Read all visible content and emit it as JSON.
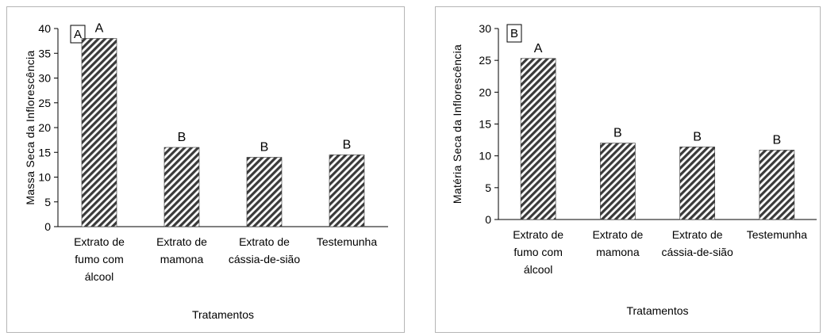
{
  "chart_data": [
    {
      "type": "bar",
      "panel_label": "A",
      "categories": [
        [
          "Extrato de",
          "fumo com",
          "álcool"
        ],
        [
          "Extrato de",
          "mamona"
        ],
        [
          "Extrato de",
          "cássia-de-sião"
        ],
        [
          "Testemunha"
        ]
      ],
      "values": [
        38,
        16,
        14,
        14.5
      ],
      "significance": [
        "A",
        "B",
        "B",
        "B"
      ],
      "xlabel": "Tratamentos",
      "ylabel": "Massa Seca da Inflorescência",
      "ylim": [
        0,
        40
      ],
      "yticks": [
        0,
        5,
        10,
        15,
        20,
        25,
        30,
        35,
        40
      ],
      "bar_pattern": "diagonal-hatch",
      "bar_color": "#3a3a3a",
      "grid": false
    },
    {
      "type": "bar",
      "panel_label": "B",
      "categories": [
        [
          "Extrato de",
          "fumo com",
          "álcool"
        ],
        [
          "Extrato de",
          "mamona"
        ],
        [
          "Extrato de",
          "cássia-de-sião"
        ],
        [
          "Testemunha"
        ]
      ],
      "values": [
        25.3,
        12,
        11.4,
        10.9
      ],
      "significance": [
        "A",
        "B",
        "B",
        "B"
      ],
      "xlabel": "Tratamentos",
      "ylabel": "Matéria Seca da Inflorescência",
      "ylim": [
        0,
        30
      ],
      "yticks": [
        0,
        5,
        10,
        15,
        20,
        25,
        30
      ],
      "bar_pattern": "diagonal-hatch",
      "bar_color": "#3a3a3a",
      "grid": false
    }
  ]
}
